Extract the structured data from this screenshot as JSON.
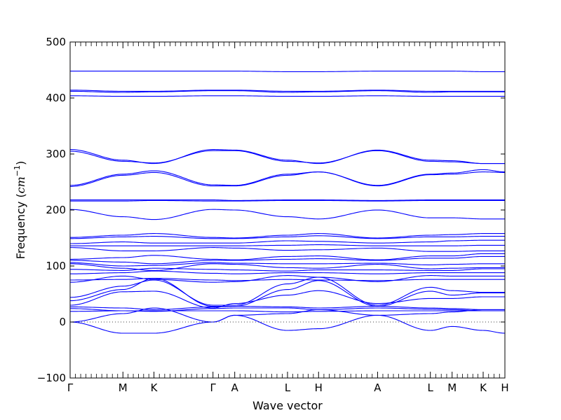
{
  "chart_data": {
    "type": "line",
    "title": "",
    "xlabel": "Wave vector",
    "ylabel": "Frequency ($cm^{-1}$)",
    "ylabel_parts": {
      "text": "Frequency (",
      "math": "cm",
      "sup": "−1",
      "close": ")"
    },
    "ylim": [
      -100,
      500
    ],
    "yticks": [
      -100,
      0,
      100,
      200,
      300,
      400,
      500
    ],
    "ytick_labels": [
      "−100",
      "0",
      "100",
      "200",
      "300",
      "400",
      "500"
    ],
    "xlim": [
      0,
      14
    ],
    "xticks": [
      {
        "pos": 0,
        "label": "Γ"
      },
      {
        "pos": 1.7,
        "label": "M"
      },
      {
        "pos": 2.7,
        "label": "K"
      },
      {
        "pos": 4.6,
        "label": "Γ"
      },
      {
        "pos": 5.3,
        "label": "A"
      },
      {
        "pos": 7.0,
        "label": "L"
      },
      {
        "pos": 8.0,
        "label": "H"
      },
      {
        "pos": 9.9,
        "label": "A"
      },
      {
        "pos": 11.6,
        "label": "L"
      },
      {
        "pos": 12.3,
        "label": "M"
      },
      {
        "pos": 13.3,
        "label": "K"
      },
      {
        "pos": 14.0,
        "label": "H"
      }
    ],
    "zero_line": {
      "y": 0,
      "style": "dotted"
    },
    "series_color": "#0000ff",
    "segments": [
      0,
      1.7,
      2.7,
      4.6,
      5.3,
      7.0,
      8.0,
      9.9,
      11.6,
      12.3,
      13.3,
      14.0
    ],
    "bands": [
      [
        448,
        448,
        448,
        448,
        448,
        447,
        447,
        448,
        448,
        448,
        447,
        447
      ],
      [
        414,
        412,
        412,
        414,
        414,
        412,
        412,
        414,
        412,
        412,
        412,
        412
      ],
      [
        412,
        410,
        411,
        413,
        413,
        410,
        411,
        413,
        410,
        411,
        411,
        411
      ],
      [
        404,
        403,
        403,
        404,
        404,
        403,
        403,
        404,
        403,
        403,
        403,
        403
      ],
      [
        308,
        289,
        283,
        308,
        307,
        289,
        283,
        307,
        289,
        288,
        283,
        283
      ],
      [
        305,
        287,
        284,
        306,
        306,
        287,
        284,
        306,
        287,
        286,
        283,
        283
      ],
      [
        244,
        264,
        270,
        245,
        244,
        264,
        268,
        244,
        264,
        266,
        272,
        268
      ],
      [
        242,
        262,
        267,
        243,
        243,
        262,
        268,
        243,
        263,
        264,
        268,
        267
      ],
      [
        218,
        218,
        218,
        218,
        217,
        218,
        218,
        217,
        218,
        218,
        218,
        218
      ],
      [
        216,
        216,
        217,
        216,
        216,
        217,
        217,
        216,
        217,
        217,
        217,
        217
      ],
      [
        201,
        188,
        183,
        201,
        200,
        188,
        184,
        200,
        186,
        186,
        184,
        184
      ],
      [
        151,
        155,
        158,
        151,
        150,
        155,
        158,
        150,
        155,
        156,
        158,
        158
      ],
      [
        149,
        152,
        153,
        149,
        149,
        152,
        154,
        149,
        152,
        152,
        153,
        153
      ],
      [
        140,
        143,
        141,
        141,
        141,
        145,
        144,
        141,
        143,
        145,
        146,
        146
      ],
      [
        136,
        136,
        136,
        136,
        136,
        137,
        138,
        136,
        136,
        136,
        137,
        137
      ],
      [
        133,
        127,
        127,
        133,
        132,
        128,
        129,
        132,
        126,
        126,
        127,
        127
      ],
      [
        112,
        115,
        119,
        112,
        111,
        117,
        118,
        111,
        118,
        118,
        122,
        122
      ],
      [
        110,
        107,
        104,
        110,
        110,
        112,
        113,
        110,
        114,
        114,
        117,
        117
      ],
      [
        106,
        100,
        101,
        106,
        105,
        104,
        104,
        105,
        102,
        103,
        104,
        104
      ],
      [
        104,
        96,
        92,
        104,
        103,
        97,
        96,
        103,
        95,
        96,
        97,
        97
      ],
      [
        94,
        92,
        96,
        94,
        93,
        91,
        93,
        93,
        92,
        92,
        95,
        95
      ],
      [
        86,
        88,
        91,
        87,
        86,
        88,
        88,
        86,
        88,
        88,
        88,
        88
      ],
      [
        75,
        76,
        78,
        75,
        74,
        76,
        75,
        74,
        76,
        76,
        76,
        76
      ],
      [
        71,
        82,
        76,
        71,
        72,
        83,
        80,
        72,
        83,
        82,
        82,
        82
      ],
      [
        44,
        64,
        75,
        30,
        30,
        68,
        80,
        30,
        62,
        56,
        53,
        53
      ],
      [
        38,
        58,
        78,
        28,
        28,
        58,
        74,
        28,
        55,
        48,
        52,
        52
      ],
      [
        30,
        54,
        55,
        25,
        33,
        48,
        56,
        33,
        42,
        42,
        45,
        45
      ],
      [
        27,
        25,
        22,
        27,
        28,
        27,
        25,
        28,
        25,
        24,
        22,
        22
      ],
      [
        24,
        20,
        19,
        24,
        25,
        25,
        22,
        25,
        23,
        22,
        20,
        20
      ],
      [
        19,
        20,
        20,
        20,
        20,
        18,
        19,
        20,
        20,
        20,
        20,
        20
      ],
      [
        0,
        15,
        25,
        0,
        12,
        15,
        22,
        12,
        15,
        18,
        22,
        22
      ],
      [
        0,
        -20,
        -20,
        0,
        12,
        -15,
        -12,
        12,
        -15,
        -8,
        -15,
        -20
      ]
    ]
  }
}
